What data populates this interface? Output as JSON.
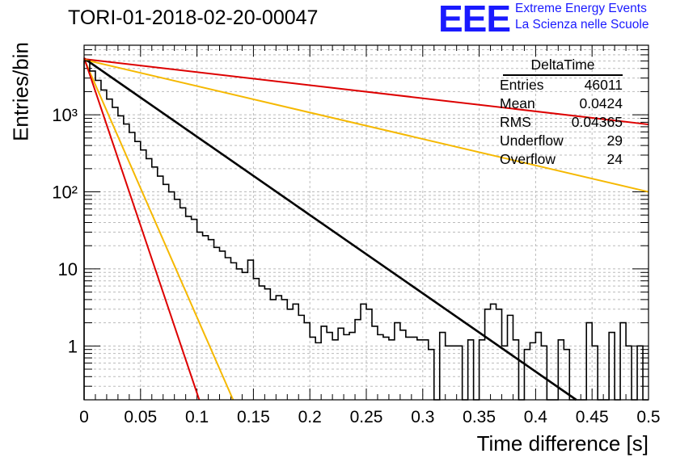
{
  "header": {
    "title": "TORI-01-2018-02-20-00047",
    "logo_text": "EEE",
    "logo_line1": "Extreme Energy Events",
    "logo_line2": "La Scienza nelle Scuole"
  },
  "stats": {
    "title": "DeltaTime",
    "rows": [
      {
        "label": "Entries",
        "value": "46011"
      },
      {
        "label": "Mean",
        "value": "0.0424"
      },
      {
        "label": "RMS",
        "value": "0.04365"
      },
      {
        "label": "Underflow",
        "value": "29"
      },
      {
        "label": "Overflow",
        "value": "24"
      }
    ]
  },
  "colors": {
    "logo": "#1a1aff",
    "histogram": "#000000",
    "fit": "#000000",
    "red": "#dd0000",
    "orange": "#f5b800"
  },
  "chart_data": {
    "type": "line",
    "xlabel": "Time difference [s]",
    "ylabel": "Entries/bin",
    "xlim": [
      0,
      0.5
    ],
    "ylim": [
      0.2,
      8000
    ],
    "log_y": true,
    "grid": true,
    "x_ticks": [
      0,
      0.05,
      0.1,
      0.15,
      0.2,
      0.25,
      0.3,
      0.35,
      0.4,
      0.45,
      0.5
    ],
    "x_tick_labels": [
      "0",
      "0.05",
      "0.1",
      "0.15",
      "0.2",
      "0.25",
      "0.3",
      "0.35",
      "0.4",
      "0.45",
      "0.5"
    ],
    "y_ticks": [
      1,
      10,
      100,
      1000
    ],
    "y_tick_labels": [
      "1",
      "10",
      "10²",
      "10³"
    ],
    "histogram": {
      "bin_width": 0.005,
      "values": [
        5000,
        3700,
        2800,
        2100,
        1600,
        1250,
        970,
        760,
        590,
        450,
        350,
        270,
        210,
        160,
        125,
        100,
        80,
        62,
        48,
        44,
        30,
        27,
        24,
        19,
        17,
        14,
        12,
        10,
        9,
        13,
        7.5,
        6,
        5.5,
        4,
        4.5,
        4,
        3,
        3.5,
        2.5,
        2,
        1.3,
        1.1,
        1.8,
        1.5,
        1.2,
        1.7,
        1.4,
        1.5,
        2.2,
        3.5,
        3,
        1.8,
        1.4,
        1.3,
        1.2,
        2,
        1.6,
        1.3,
        1.3,
        1.2,
        1.2,
        0.9,
        0,
        1.5,
        1,
        1,
        1,
        0,
        1.2,
        0,
        1.2,
        3,
        3.5,
        3,
        1,
        2.5,
        1.2,
        0,
        0.9,
        1.1,
        1.5,
        1,
        0,
        0,
        1.2,
        0.9,
        0,
        0,
        0,
        2,
        1,
        0,
        0,
        1.5,
        0,
        2,
        1,
        0,
        1,
        0
      ]
    },
    "series": [
      {
        "color": "#000000",
        "x": [
          0,
          0.436
        ],
        "y": [
          5400,
          0.2
        ]
      },
      {
        "color": "#dd0000",
        "x": [
          0,
          0.5
        ],
        "y": [
          5300,
          750
        ]
      },
      {
        "color": "#f5b800",
        "x": [
          0,
          0.5
        ],
        "y": [
          5200,
          100
        ]
      },
      {
        "color": "#f5b800",
        "x": [
          0,
          0.132
        ],
        "y": [
          5300,
          0.2
        ]
      },
      {
        "color": "#dd0000",
        "x": [
          0,
          0.102
        ],
        "y": [
          5500,
          0.2
        ]
      }
    ]
  }
}
